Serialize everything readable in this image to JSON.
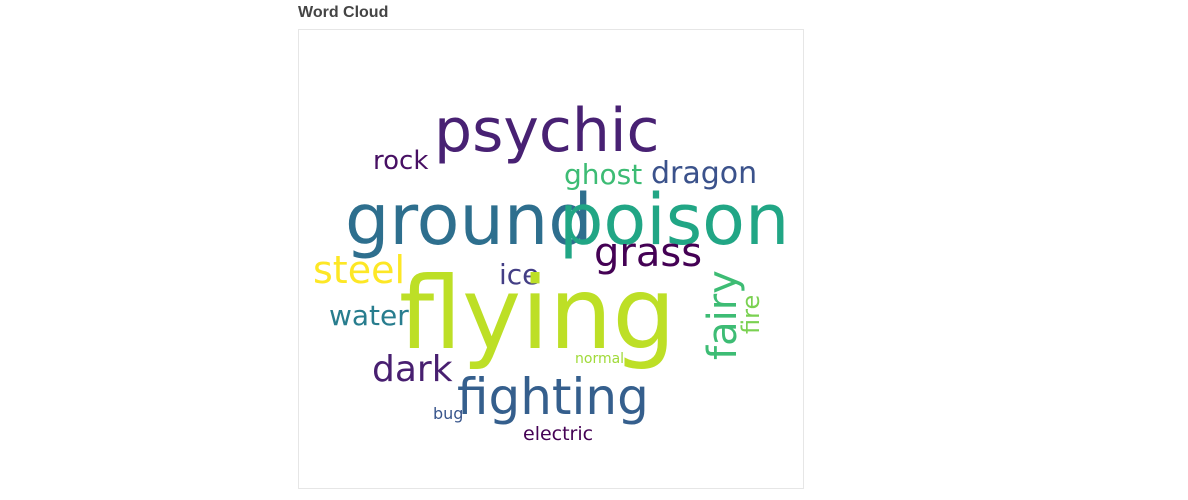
{
  "panel": {
    "title": "Word Cloud"
  },
  "wordcloud": {
    "background": "#ffffff",
    "words": [
      {
        "text": "flying",
        "color": "#bddf26"
      },
      {
        "text": "psychic",
        "color": "#482173"
      },
      {
        "text": "ground",
        "color": "#2e6f8e"
      },
      {
        "text": "poison",
        "color": "#21a685"
      },
      {
        "text": "fighting",
        "color": "#355f8d"
      },
      {
        "text": "grass",
        "color": "#440154"
      },
      {
        "text": "dragon",
        "color": "#3b528b"
      },
      {
        "text": "ghost",
        "color": "#3dbc74"
      },
      {
        "text": "steel",
        "color": "#fde725"
      },
      {
        "text": "dark",
        "color": "#481f70"
      },
      {
        "text": "rock",
        "color": "#471063"
      },
      {
        "text": "ice",
        "color": "#433e85"
      },
      {
        "text": "water",
        "color": "#287d8e"
      },
      {
        "text": "fairy",
        "color": "#3dbc74"
      },
      {
        "text": "fire",
        "color": "#7ad151"
      },
      {
        "text": "normal",
        "color": "#a0da39"
      },
      {
        "text": "bug",
        "color": "#39568c"
      },
      {
        "text": "electric",
        "color": "#440154"
      }
    ]
  }
}
